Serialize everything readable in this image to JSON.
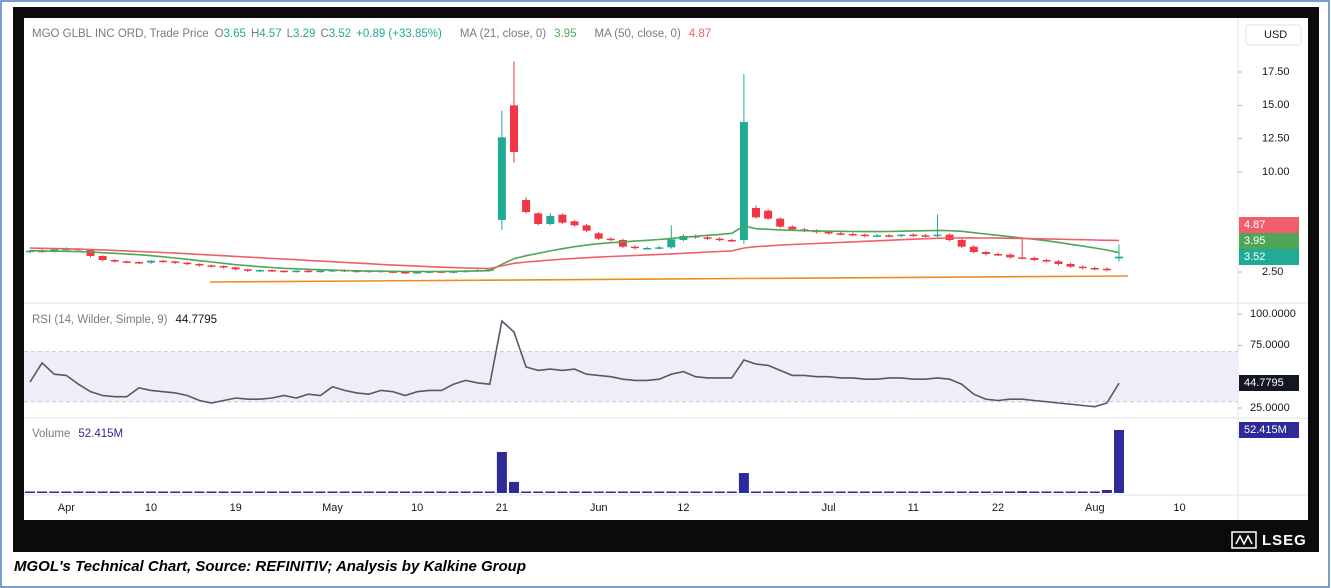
{
  "chart_data": {
    "type": "candlestick",
    "title": "MGO GLBL INC ORD, Trade Price",
    "currency": "USD",
    "ohlc_letters": [
      "O",
      "H",
      "L",
      "C"
    ],
    "change": "+0.89 (+33.85%)",
    "up_color": "#22ab94",
    "down_color": "#f23645",
    "categories": [
      null,
      null,
      null,
      "Apr",
      null,
      null,
      null,
      null,
      null,
      null,
      "10",
      null,
      null,
      null,
      null,
      null,
      null,
      "19",
      null,
      null,
      null,
      null,
      null,
      null,
      null,
      "May",
      null,
      null,
      null,
      null,
      null,
      null,
      "10",
      null,
      null,
      null,
      null,
      null,
      null,
      "21",
      null,
      null,
      null,
      null,
      null,
      null,
      null,
      "Jun",
      null,
      null,
      null,
      null,
      null,
      null,
      "12",
      null,
      null,
      null,
      null,
      null,
      null,
      null,
      null,
      null,
      null,
      null,
      "Jul",
      null,
      null,
      null,
      null,
      null,
      null,
      "11",
      null,
      null,
      null,
      null,
      null,
      null,
      "22",
      null,
      null,
      null,
      null,
      null,
      null,
      null,
      "Aug",
      null,
      null,
      null,
      null,
      null,
      null,
      "10"
    ],
    "open": [
      4.0,
      4.1,
      4.05,
      4.2,
      4.25,
      4.15,
      3.7,
      3.4,
      3.3,
      3.25,
      3.2,
      3.35,
      3.3,
      3.2,
      3.1,
      3.0,
      2.95,
      2.85,
      2.7,
      2.6,
      2.65,
      2.6,
      2.55,
      2.6,
      2.55,
      2.6,
      2.65,
      2.6,
      2.55,
      2.6,
      2.55,
      2.5,
      2.45,
      2.5,
      2.55,
      2.5,
      2.55,
      2.6,
      2.65,
      6.4,
      15.0,
      7.9,
      6.9,
      6.1,
      6.8,
      6.3,
      6.0,
      5.4,
      5.0,
      4.9,
      4.4,
      4.3,
      4.3,
      4.35,
      4.9,
      5.2,
      5.1,
      5.0,
      4.9,
      4.9,
      7.3,
      7.1,
      6.5,
      5.9,
      5.7,
      5.6,
      5.5,
      5.4,
      5.35,
      5.3,
      5.2,
      5.25,
      5.2,
      5.3,
      5.25,
      5.2,
      5.3,
      4.9,
      4.4,
      4.0,
      3.85,
      3.8,
      3.6,
      3.55,
      3.4,
      3.3,
      3.1,
      2.9,
      2.8,
      2.75,
      3.65,
      null,
      null,
      null,
      null,
      null
    ],
    "high": [
      4.15,
      4.2,
      4.3,
      4.35,
      4.3,
      4.2,
      3.75,
      3.45,
      3.35,
      3.3,
      3.4,
      3.4,
      3.35,
      3.25,
      3.15,
      3.05,
      3.0,
      2.9,
      2.75,
      2.7,
      2.7,
      2.65,
      2.65,
      2.65,
      2.65,
      2.7,
      2.7,
      2.65,
      2.65,
      2.65,
      2.6,
      2.55,
      2.55,
      2.6,
      2.6,
      2.6,
      2.65,
      2.7,
      2.75,
      14.6,
      18.3,
      8.1,
      7.0,
      6.9,
      6.9,
      6.4,
      6.1,
      5.5,
      5.1,
      5.0,
      4.5,
      4.4,
      4.45,
      6.0,
      5.35,
      5.3,
      5.2,
      5.1,
      5.0,
      17.35,
      7.5,
      7.2,
      6.6,
      6.0,
      5.8,
      5.7,
      5.6,
      5.5,
      5.45,
      5.4,
      5.35,
      5.35,
      5.35,
      5.4,
      5.35,
      6.8,
      5.4,
      5.0,
      4.5,
      4.1,
      3.95,
      3.9,
      5.0,
      3.65,
      3.5,
      3.4,
      3.2,
      3.0,
      2.9,
      2.85,
      4.57,
      null,
      null,
      null,
      null,
      null
    ],
    "low": [
      3.9,
      3.95,
      3.95,
      4.1,
      4.05,
      3.6,
      3.3,
      3.2,
      3.15,
      3.1,
      3.1,
      3.2,
      3.1,
      3.0,
      2.9,
      2.85,
      2.75,
      2.6,
      2.5,
      2.5,
      2.5,
      2.45,
      2.45,
      2.45,
      2.45,
      2.5,
      2.5,
      2.45,
      2.45,
      2.45,
      2.4,
      2.35,
      2.35,
      2.4,
      2.4,
      2.4,
      2.45,
      2.5,
      2.55,
      5.65,
      10.7,
      6.9,
      6.0,
      6.0,
      6.1,
      5.9,
      5.5,
      4.9,
      4.8,
      4.3,
      4.2,
      4.2,
      4.2,
      4.25,
      4.8,
      5.0,
      4.9,
      4.8,
      4.75,
      4.6,
      6.5,
      6.4,
      5.8,
      5.6,
      5.5,
      5.4,
      5.3,
      5.25,
      5.2,
      5.1,
      5.1,
      5.1,
      5.1,
      5.15,
      5.1,
      5.1,
      4.8,
      4.3,
      3.9,
      3.75,
      3.7,
      3.5,
      3.45,
      3.3,
      3.2,
      3.0,
      2.8,
      2.7,
      2.65,
      2.55,
      3.29,
      null,
      null,
      null,
      null,
      null
    ],
    "close": [
      4.1,
      4.05,
      4.2,
      4.25,
      4.15,
      3.7,
      3.4,
      3.3,
      3.25,
      3.2,
      3.35,
      3.3,
      3.2,
      3.1,
      3.0,
      2.95,
      2.85,
      2.7,
      2.6,
      2.65,
      2.6,
      2.55,
      2.6,
      2.55,
      2.6,
      2.65,
      2.6,
      2.55,
      2.6,
      2.55,
      2.5,
      2.45,
      2.5,
      2.55,
      2.5,
      2.55,
      2.6,
      2.65,
      2.7,
      12.6,
      11.5,
      7.0,
      6.1,
      6.7,
      6.2,
      6.0,
      5.6,
      5.0,
      4.9,
      4.4,
      4.3,
      4.3,
      4.35,
      4.95,
      5.2,
      5.1,
      5.0,
      4.9,
      4.85,
      13.75,
      6.6,
      6.5,
      5.9,
      5.7,
      5.6,
      5.5,
      5.4,
      5.35,
      5.3,
      5.2,
      5.25,
      5.2,
      5.3,
      5.25,
      5.2,
      5.3,
      4.9,
      4.4,
      4.0,
      3.85,
      3.8,
      3.6,
      3.55,
      3.4,
      3.3,
      3.1,
      2.9,
      2.8,
      2.75,
      2.63,
      3.52,
      null,
      null,
      null,
      null,
      null
    ],
    "series": [
      {
        "name": "MA (21, close, 0)",
        "color": "#4fa656",
        "values": [
          4.1,
          4.08,
          4.06,
          4.05,
          4.03,
          4.0,
          3.95,
          3.9,
          3.85,
          3.8,
          3.72,
          3.64,
          3.55,
          3.45,
          3.35,
          3.25,
          3.15,
          3.05,
          2.97,
          2.9,
          2.84,
          2.78,
          2.74,
          2.7,
          2.67,
          2.64,
          2.61,
          2.59,
          2.57,
          2.56,
          2.55,
          2.54,
          2.54,
          2.54,
          2.54,
          2.55,
          2.56,
          2.58,
          2.6,
          3.08,
          3.5,
          3.72,
          3.9,
          4.08,
          4.25,
          4.4,
          4.52,
          4.62,
          4.7,
          4.76,
          4.82,
          4.88,
          4.94,
          5.02,
          5.1,
          5.18,
          5.25,
          5.32,
          5.4,
          5.95,
          5.75,
          5.7,
          5.66,
          5.63,
          5.6,
          5.58,
          5.56,
          5.55,
          5.54,
          5.53,
          5.53,
          5.54,
          5.56,
          5.58,
          5.6,
          5.62,
          5.6,
          5.55,
          5.45,
          5.35,
          5.25,
          5.15,
          5.05,
          4.95,
          4.85,
          4.72,
          4.58,
          4.44,
          4.3,
          4.15,
          3.95,
          null,
          null,
          null,
          null,
          null
        ]
      },
      {
        "name": "MA (50, close, 0)",
        "color": "#ee5f6b",
        "values": [
          4.3,
          4.28,
          4.26,
          4.24,
          4.22,
          4.19,
          4.16,
          4.12,
          4.08,
          4.04,
          4.0,
          3.96,
          3.92,
          3.87,
          3.82,
          3.77,
          3.72,
          3.67,
          3.62,
          3.57,
          3.52,
          3.47,
          3.42,
          3.37,
          3.32,
          3.27,
          3.22,
          3.17,
          3.12,
          3.07,
          3.02,
          2.98,
          2.94,
          2.9,
          2.86,
          2.83,
          2.8,
          2.78,
          2.76,
          2.96,
          3.15,
          3.25,
          3.32,
          3.4,
          3.46,
          3.52,
          3.57,
          3.62,
          3.66,
          3.7,
          3.74,
          3.78,
          3.82,
          3.86,
          3.9,
          3.95,
          4.0,
          4.04,
          4.08,
          4.3,
          4.4,
          4.46,
          4.52,
          4.56,
          4.6,
          4.64,
          4.68,
          4.72,
          4.76,
          4.8,
          4.84,
          4.88,
          4.92,
          4.96,
          5.0,
          5.03,
          5.05,
          5.06,
          5.06,
          5.05,
          5.04,
          5.03,
          5.02,
          5.0,
          4.98,
          4.96,
          4.94,
          4.92,
          4.9,
          4.88,
          4.87,
          null,
          null,
          null,
          null,
          null
        ]
      }
    ],
    "ylim": [
      0.4,
      21.55
    ],
    "yticks": [
      {
        "value": 17.5,
        "label": "17.50"
      },
      {
        "value": 15,
        "label": "15.00"
      },
      {
        "value": 12.5,
        "label": "12.50"
      },
      {
        "value": 10,
        "label": "10.00"
      },
      {
        "value": 2.5,
        "label": "2.50"
      }
    ],
    "grid": false,
    "rsi": {
      "name": "RSI (14, Wilder, Simple, 9)",
      "color": "#555a66",
      "band_color": "#f1ecfa",
      "band": [
        30,
        70
      ],
      "ylim": [
        17.8,
        107.2
      ],
      "yticks": [
        {
          "value": 100,
          "label": "100.0000"
        },
        {
          "value": 75,
          "label": "75.0000"
        },
        {
          "value": 25,
          "label": "25.0000"
        }
      ],
      "values": [
        45.7,
        61,
        52,
        51,
        44,
        38,
        35,
        34,
        34,
        41,
        39,
        38,
        37,
        35,
        31,
        29,
        31,
        33,
        32,
        32,
        33,
        35,
        33,
        36,
        35,
        42,
        39,
        37,
        36,
        39,
        38,
        35,
        38,
        39,
        39,
        44,
        47,
        45,
        44,
        94.4,
        85.6,
        57.7,
        55,
        56,
        55,
        56,
        52,
        51,
        50,
        48,
        47,
        47,
        48,
        52,
        54,
        50,
        49,
        49,
        49,
        63.3,
        60,
        59,
        55,
        51,
        51,
        50,
        50,
        49,
        49,
        48,
        48,
        49,
        49,
        48,
        48,
        49,
        48,
        44,
        36,
        32,
        31,
        32,
        32,
        31,
        30,
        29,
        28,
        27,
        26,
        29,
        44.7795,
        null,
        null,
        null,
        null,
        null
      ]
    },
    "volume": {
      "name": "Volume",
      "color": "#2e2a9a",
      "ylim": [
        0,
        60.7
      ],
      "values": [
        0.5,
        0.4,
        0.6,
        0.4,
        0.3,
        0.5,
        0.4,
        0.3,
        0.3,
        0.3,
        0.3,
        0.3,
        0.3,
        0.3,
        0.3,
        0.3,
        0.3,
        0.3,
        0.3,
        0.3,
        0.3,
        0.3,
        0.3,
        0.3,
        0.3,
        0.3,
        0.3,
        0.3,
        0.3,
        0.3,
        0.3,
        0.3,
        0.3,
        0.3,
        0.3,
        0.3,
        0.3,
        0.3,
        0.4,
        34.1,
        9.2,
        1.0,
        0.6,
        0.5,
        0.4,
        0.4,
        0.3,
        0.3,
        0.3,
        0.3,
        0.3,
        0.3,
        0.3,
        0.3,
        0.3,
        0.3,
        0.3,
        0.3,
        0.3,
        16.6,
        1.2,
        0.6,
        0.4,
        0.3,
        0.3,
        0.3,
        0.3,
        0.3,
        0.3,
        0.3,
        0.3,
        0.3,
        0.3,
        0.3,
        0.3,
        0.3,
        0.3,
        0.3,
        0.3,
        0.3,
        0.3,
        0.3,
        1.5,
        0.3,
        0.3,
        0.3,
        0.3,
        0.3,
        0.3,
        2.5,
        52.415,
        null,
        null,
        null,
        null,
        null
      ],
      "value_labels": [
        null,
        null,
        null,
        null,
        null,
        null,
        null,
        null,
        null,
        null,
        null,
        null,
        null,
        null,
        null,
        null,
        null,
        null,
        null,
        null,
        null,
        null,
        null,
        null,
        null,
        null,
        null,
        null,
        null,
        null,
        null,
        null,
        null,
        null,
        null,
        null,
        null,
        null,
        null,
        null,
        null,
        null,
        null,
        null,
        null,
        null,
        null,
        null,
        null,
        null,
        null,
        null,
        null,
        null,
        null,
        null,
        null,
        null,
        null,
        null,
        null,
        null,
        null,
        null,
        null,
        null,
        null,
        null,
        null,
        null,
        null,
        null,
        null,
        null,
        null,
        null,
        null,
        null,
        null,
        null,
        null,
        null,
        null,
        null,
        null,
        null,
        null,
        null,
        null,
        null,
        "52.415M",
        null,
        null,
        null,
        null,
        null
      ]
    }
  },
  "logo": "LSEG",
  "caption": "MGOL's Technical Chart, Source: REFINITIV; Analysis by Kalkine Group"
}
